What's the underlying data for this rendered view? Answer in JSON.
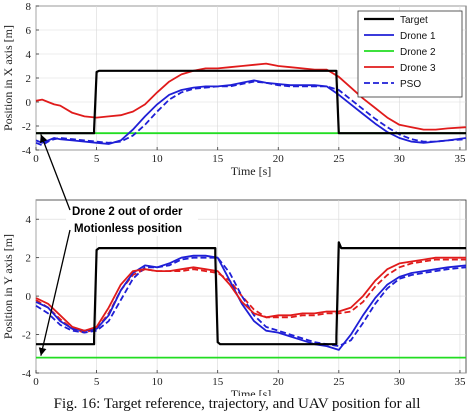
{
  "caption": "Fig. 16: Target reference, trajectory, and UAV position for all",
  "annotation": {
    "lines": [
      "Drone 2 out of order",
      "Motionless position"
    ]
  },
  "colors": {
    "target": "#000000",
    "drone1": "#1f1fd6",
    "drone2": "#22dd22",
    "drone3": "#e01b1b",
    "pso": "#1f1fd6",
    "grid": "#d9d9d9"
  },
  "chart_data": [
    {
      "type": "line",
      "title": "",
      "xlabel": "Time [s]",
      "ylabel": "Position in X axis [m]",
      "xlim": [
        0,
        35.5
      ],
      "ylim": [
        -4,
        8
      ],
      "xticks": [
        0,
        5,
        10,
        15,
        20,
        25,
        30,
        35
      ],
      "yticks": [
        -4,
        -2,
        0,
        2,
        4,
        6,
        8
      ],
      "grid": true,
      "legend": {
        "placement": "top-right",
        "entries": [
          "Target",
          "Drone 1",
          "Drone 2",
          "Drone 3",
          "PSO"
        ]
      },
      "series": [
        {
          "name": "Target",
          "style": "solid",
          "x": [
            0,
            4.8,
            4.8,
            5.0,
            5.2,
            24.8,
            24.8,
            25.0,
            25.2,
            35.5
          ],
          "y": [
            -2.6,
            -2.6,
            -2.3,
            2.5,
            2.6,
            2.6,
            2.3,
            -2.6,
            -2.6,
            -2.6
          ]
        },
        {
          "name": "Drone 1",
          "style": "solid",
          "x": [
            0,
            0.5,
            1,
            1.5,
            2,
            3,
            4,
            5,
            6,
            7,
            8,
            9,
            10,
            11,
            12,
            13,
            14,
            15,
            16,
            17,
            18,
            19,
            20,
            21,
            22,
            23,
            24,
            25,
            26,
            27,
            28,
            29,
            30,
            31,
            32,
            33,
            34,
            35.5
          ],
          "y": [
            -3.2,
            -3.4,
            -3.2,
            -3.0,
            -3.1,
            -3.2,
            -3.3,
            -3.4,
            -3.5,
            -3.2,
            -2.3,
            -1.2,
            -0.2,
            0.6,
            1.0,
            1.2,
            1.3,
            1.3,
            1.4,
            1.6,
            1.8,
            1.6,
            1.5,
            1.4,
            1.4,
            1.4,
            1.3,
            0.6,
            -0.2,
            -1.0,
            -1.8,
            -2.5,
            -3.0,
            -3.3,
            -3.4,
            -3.3,
            -3.2,
            -3.0
          ]
        },
        {
          "name": "Drone 2",
          "style": "solid",
          "x": [
            0,
            35.5
          ],
          "y": [
            -2.6,
            -2.6
          ]
        },
        {
          "name": "Drone 3",
          "style": "solid",
          "x": [
            0,
            0.5,
            1,
            1.5,
            2,
            3,
            4,
            5,
            6,
            7,
            8,
            9,
            10,
            11,
            12,
            13,
            14,
            15,
            16,
            17,
            18,
            19,
            20,
            21,
            22,
            23,
            24,
            25,
            26,
            27,
            28,
            29,
            30,
            31,
            32,
            33,
            34,
            35.5
          ],
          "y": [
            0.1,
            0.2,
            0.0,
            -0.2,
            -0.3,
            -0.9,
            -1.2,
            -1.3,
            -1.2,
            -1.1,
            -0.8,
            -0.2,
            0.8,
            1.7,
            2.3,
            2.6,
            2.8,
            2.8,
            2.9,
            3.0,
            3.1,
            3.2,
            3.0,
            2.9,
            2.8,
            2.7,
            2.7,
            2.1,
            1.2,
            0.3,
            -0.5,
            -1.3,
            -1.9,
            -2.1,
            -2.3,
            -2.3,
            -2.2,
            -2.1
          ]
        },
        {
          "name": "PSO",
          "style": "dashed",
          "x": [
            0,
            0.5,
            1,
            1.5,
            2,
            3,
            4,
            5,
            6,
            7,
            8,
            9,
            10,
            11,
            12,
            13,
            14,
            15,
            16,
            17,
            18,
            19,
            20,
            21,
            22,
            23,
            24,
            25,
            26,
            27,
            28,
            29,
            30,
            31,
            32,
            33,
            34,
            35.5
          ],
          "y": [
            -3.4,
            -3.6,
            -3.3,
            -3.1,
            -3.0,
            -3.1,
            -3.2,
            -3.3,
            -3.4,
            -3.3,
            -2.8,
            -1.9,
            -0.8,
            0.2,
            0.8,
            1.1,
            1.2,
            1.3,
            1.3,
            1.5,
            1.7,
            1.6,
            1.4,
            1.3,
            1.3,
            1.3,
            1.3,
            1.0,
            0.2,
            -0.6,
            -1.4,
            -2.1,
            -2.7,
            -3.1,
            -3.3,
            -3.3,
            -3.2,
            -3.1
          ]
        }
      ]
    },
    {
      "type": "line",
      "title": "",
      "xlabel": "Time [s]",
      "ylabel": "Position in Y axis [m]",
      "xlim": [
        0,
        35.5
      ],
      "ylim": [
        -4,
        5
      ],
      "xticks": [
        0,
        5,
        10,
        15,
        20,
        25,
        30,
        35
      ],
      "yticks": [
        -4,
        -2,
        0,
        2,
        4
      ],
      "grid": true,
      "series": [
        {
          "name": "Target",
          "style": "solid",
          "x": [
            0,
            4.8,
            4.8,
            5.0,
            5.2,
            14.8,
            14.8,
            15.0,
            15.2,
            24.8,
            24.8,
            25.0,
            25.2,
            35.5
          ],
          "y": [
            -2.5,
            -2.5,
            -2.2,
            2.4,
            2.5,
            2.5,
            2.1,
            -2.4,
            -2.5,
            -2.5,
            -2.1,
            2.8,
            2.5,
            2.5
          ]
        },
        {
          "name": "Drone 1",
          "style": "solid",
          "x": [
            0,
            1,
            2,
            3,
            4,
            5,
            6,
            7,
            8,
            9,
            10,
            11,
            12,
            13,
            14,
            15,
            16,
            17,
            18,
            19,
            20,
            21,
            22,
            23,
            24,
            25,
            26,
            27,
            28,
            29,
            30,
            31,
            32,
            33,
            34,
            35.5
          ],
          "y": [
            -0.3,
            -0.6,
            -1.3,
            -1.7,
            -1.8,
            -1.7,
            -1.0,
            0.3,
            1.2,
            1.6,
            1.5,
            1.7,
            2.0,
            2.1,
            2.1,
            2.0,
            0.8,
            -0.4,
            -1.3,
            -1.8,
            -1.9,
            -2.1,
            -2.3,
            -2.5,
            -2.6,
            -2.8,
            -2.0,
            -1.0,
            -0.1,
            0.6,
            1.0,
            1.2,
            1.3,
            1.4,
            1.5,
            1.6
          ]
        },
        {
          "name": "Drone 2",
          "style": "solid",
          "x": [
            0,
            35.5
          ],
          "y": [
            -3.2,
            -3.2
          ]
        },
        {
          "name": "Drone 3",
          "style": "solid",
          "x": [
            0,
            1,
            2,
            3,
            4,
            5,
            6,
            7,
            8,
            9,
            10,
            11,
            12,
            13,
            14,
            15,
            16,
            17,
            18,
            19,
            20,
            21,
            22,
            23,
            24,
            25,
            26,
            27,
            28,
            29,
            30,
            31,
            32,
            33,
            34,
            35.5
          ],
          "y": [
            -0.1,
            -0.4,
            -1.0,
            -1.6,
            -1.8,
            -1.6,
            -0.6,
            0.6,
            1.3,
            1.4,
            1.3,
            1.3,
            1.4,
            1.5,
            1.4,
            1.3,
            0.6,
            -0.3,
            -0.9,
            -1.1,
            -1.0,
            -1.0,
            -0.9,
            -0.9,
            -0.8,
            -0.8,
            -0.6,
            0.0,
            0.8,
            1.4,
            1.7,
            1.8,
            1.9,
            2.0,
            2.0,
            2.0
          ]
        },
        {
          "name": "PSO",
          "style": "dashed",
          "x": [
            0,
            1,
            2,
            3,
            4,
            5,
            6,
            7,
            8,
            9,
            10,
            11,
            12,
            13,
            14,
            15,
            16,
            17,
            18,
            19,
            20,
            21,
            22,
            23,
            24,
            25,
            26,
            27,
            28,
            29,
            30,
            31,
            32,
            33,
            34,
            35.5
          ],
          "y": [
            -0.5,
            -0.9,
            -1.5,
            -1.8,
            -1.9,
            -1.8,
            -1.3,
            -0.2,
            0.9,
            1.5,
            1.5,
            1.6,
            1.9,
            2.0,
            2.0,
            2.0,
            1.2,
            0.0,
            -1.0,
            -1.6,
            -1.8,
            -2.0,
            -2.2,
            -2.4,
            -2.5,
            -2.6,
            -2.3,
            -1.4,
            -0.4,
            0.4,
            0.9,
            1.1,
            1.2,
            1.3,
            1.4,
            1.5
          ]
        },
        {
          "name": "Drone 3 dashed",
          "style": "dashed-red",
          "x": [
            0,
            1,
            2,
            3,
            4,
            5,
            6,
            7,
            8,
            9,
            10,
            11,
            12,
            13,
            14,
            15,
            16,
            17,
            18,
            19,
            20,
            21,
            22,
            23,
            24,
            25,
            26,
            27,
            28,
            29,
            30,
            31,
            32,
            33,
            34,
            35.5
          ],
          "y": [
            -0.2,
            -0.6,
            -1.2,
            -1.7,
            -1.9,
            -1.7,
            -0.9,
            0.3,
            1.1,
            1.4,
            1.3,
            1.3,
            1.3,
            1.4,
            1.3,
            1.2,
            0.8,
            0.0,
            -0.7,
            -1.1,
            -1.1,
            -1.1,
            -1.0,
            -1.0,
            -0.9,
            -0.9,
            -0.8,
            -0.3,
            0.5,
            1.1,
            1.5,
            1.7,
            1.8,
            1.9,
            1.9,
            1.9
          ]
        }
      ]
    }
  ]
}
